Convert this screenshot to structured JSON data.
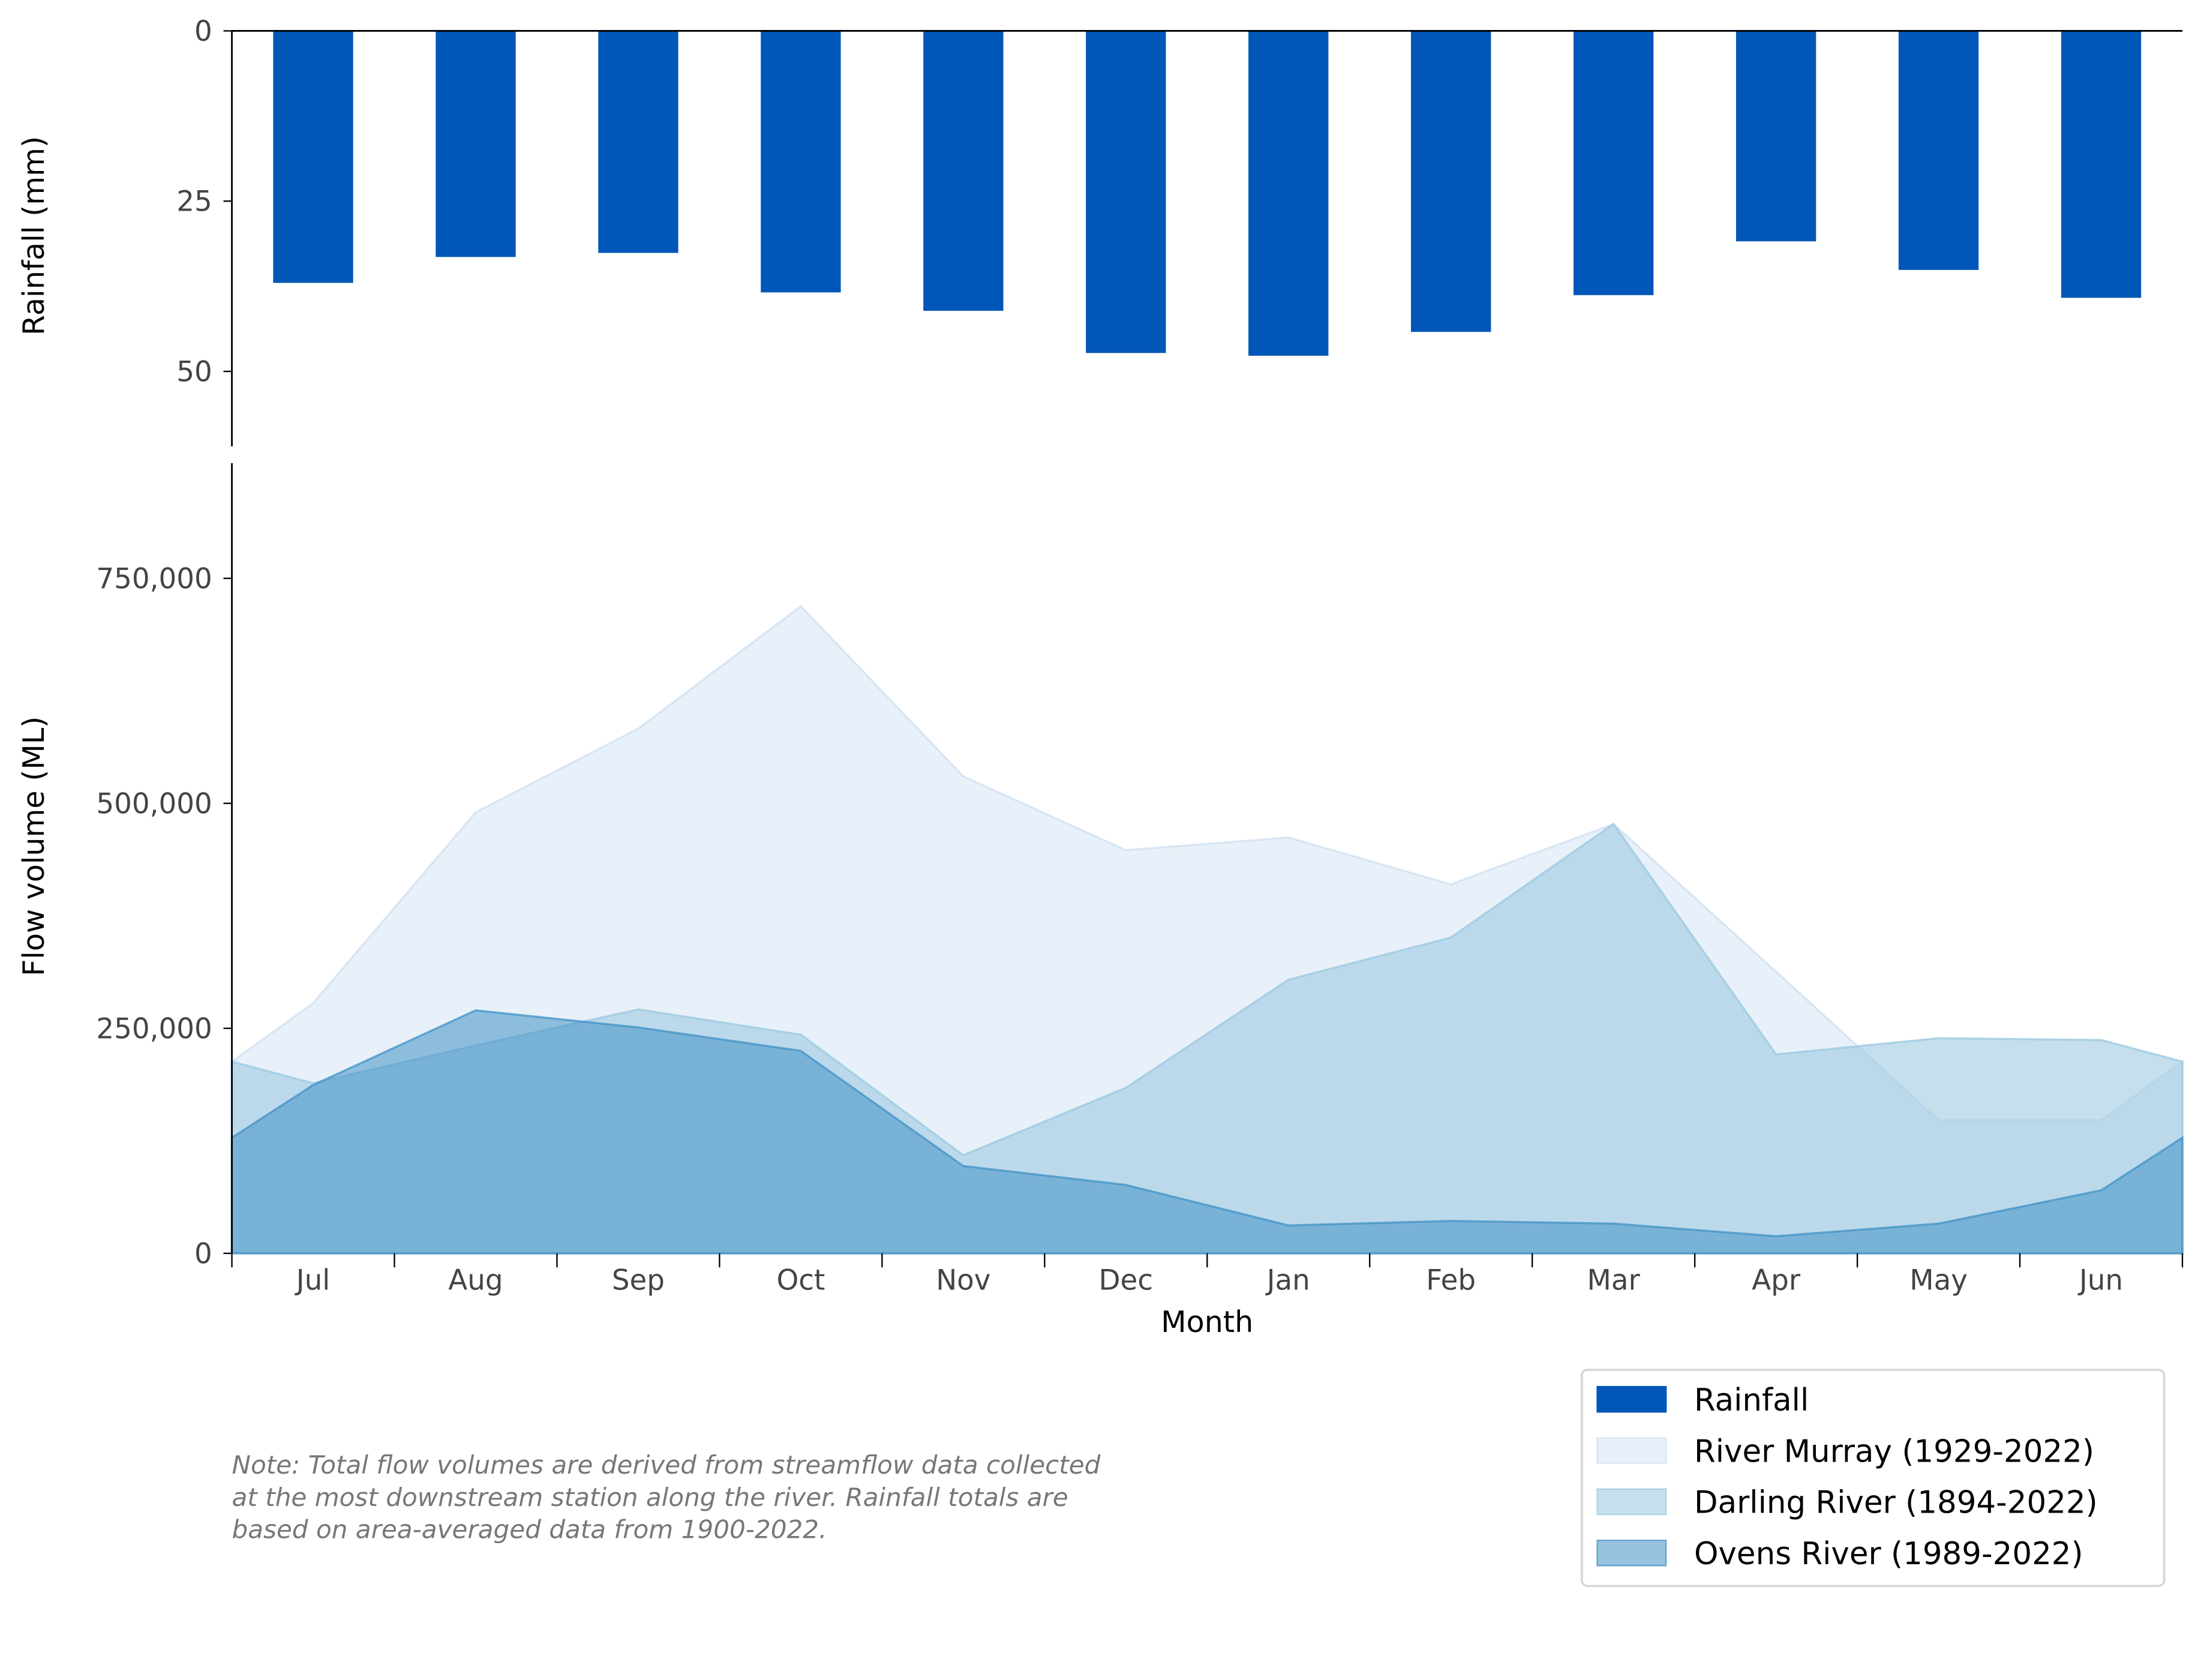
{
  "chart_data": [
    {
      "type": "bar",
      "categories": [
        "Jul",
        "Aug",
        "Sep",
        "Oct",
        "Nov",
        "Dec",
        "Jan",
        "Feb",
        "Mar",
        "Apr",
        "May",
        "Jun"
      ],
      "series": [
        {
          "name": "Rainfall",
          "values": [
            37.0,
            33.2,
            32.6,
            38.4,
            41.1,
            47.3,
            47.7,
            44.2,
            38.8,
            30.9,
            35.1,
            39.2
          ],
          "color": "#0057b7"
        }
      ],
      "ylabel": "Rainfall (mm)",
      "yticks": [
        "0",
        "25",
        "50"
      ],
      "ytick_values": [
        0,
        25,
        50
      ],
      "ylim": [
        0,
        61
      ],
      "y_inverted": true
    },
    {
      "type": "area",
      "categories": [
        "Jul",
        "Aug",
        "Sep",
        "Oct",
        "Nov",
        "Dec",
        "Jan",
        "Feb",
        "Mar",
        "Apr",
        "May",
        "Jun"
      ],
      "series": [
        {
          "name": "River Murray (1929-2022)",
          "values": [
            278000,
            490000,
            583000,
            719000,
            530000,
            448000,
            462000,
            410000,
            477000,
            313000,
            148000,
            148000
          ],
          "color": "#c6dbef",
          "opacity": 0.4
        },
        {
          "name": "Darling River (1894-2022)",
          "values": [
            189000,
            231000,
            271000,
            243000,
            109000,
            184000,
            304000,
            351000,
            477000,
            221000,
            239000,
            237000
          ],
          "color": "#9ecae1",
          "opacity": 0.6
        },
        {
          "name": "Ovens River (1989-2022)",
          "values": [
            187000,
            270000,
            251000,
            225000,
            97000,
            76000,
            31000,
            36000,
            33000,
            19000,
            33000,
            70000
          ],
          "color": "#4292c6",
          "opacity": 0.55
        }
      ],
      "xlabel": "Month",
      "ylabel": "Flow volume (ML)",
      "yticks": [
        "0",
        "250,000",
        "500,000",
        "750,000"
      ],
      "ytick_values": [
        0,
        250000,
        500000,
        750000
      ],
      "ylim": [
        0,
        878000
      ]
    }
  ],
  "legend": {
    "placement": "bottom-right",
    "items": [
      "Rainfall",
      "River Murray (1929-2022)",
      "Darling River (1894-2022)",
      "Ovens River (1989-2022)"
    ]
  },
  "note": [
    "Note: Total flow volumes are derived from streamflow data collected",
    "at the most downstream station along the river. Rainfall totals are",
    "based on area-averaged data from 1900-2022."
  ]
}
